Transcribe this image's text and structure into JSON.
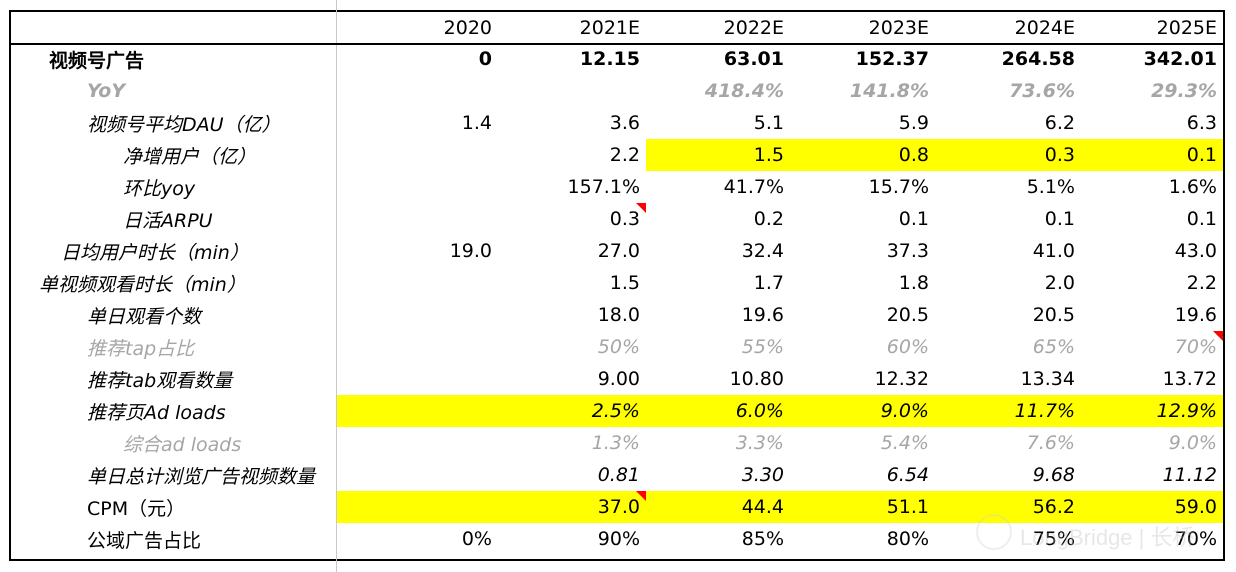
{
  "header": {
    "years": [
      "2020",
      "2021E",
      "2022E",
      "2023E",
      "2024E",
      "2025E"
    ]
  },
  "rows": [
    {
      "label": "视频号广告",
      "values": [
        "0",
        "12.15",
        "63.01",
        "152.37",
        "264.58",
        "342.01"
      ]
    },
    {
      "label": "YoY",
      "values": [
        "",
        "",
        "418.4%",
        "141.8%",
        "73.6%",
        "29.3%"
      ]
    },
    {
      "label": "视频号平均DAU（亿）",
      "values": [
        "1.4",
        "3.6",
        "5.1",
        "5.9",
        "6.2",
        "6.3"
      ]
    },
    {
      "label": "净增用户（亿）",
      "values": [
        "",
        "2.2",
        "1.5",
        "0.8",
        "0.3",
        "0.1"
      ]
    },
    {
      "label": "环比yoy",
      "values": [
        "",
        "157.1%",
        "41.7%",
        "15.7%",
        "5.1%",
        "1.6%"
      ]
    },
    {
      "label": "日活ARPU",
      "values": [
        "",
        "0.3",
        "0.2",
        "0.1",
        "0.1",
        "0.1"
      ]
    },
    {
      "label": "日均用户时长（min）",
      "values": [
        "19.0",
        "27.0",
        "32.4",
        "37.3",
        "41.0",
        "43.0"
      ]
    },
    {
      "label": "单视频观看时长（min）",
      "values": [
        "",
        "1.5",
        "1.7",
        "1.8",
        "2.0",
        "2.2"
      ]
    },
    {
      "label": "单日观看个数",
      "values": [
        "",
        "18.0",
        "19.6",
        "20.5",
        "20.5",
        "19.6"
      ]
    },
    {
      "label": "推荐tap占比",
      "values": [
        "",
        "50%",
        "55%",
        "60%",
        "65%",
        "70%"
      ]
    },
    {
      "label": "推荐tab观看数量",
      "values": [
        "",
        "9.00",
        "10.80",
        "12.32",
        "13.34",
        "13.72"
      ]
    },
    {
      "label": "推荐页Ad loads",
      "values": [
        "",
        "2.5%",
        "6.0%",
        "9.0%",
        "11.7%",
        "12.9%"
      ]
    },
    {
      "label": "综合ad loads",
      "values": [
        "",
        "1.3%",
        "3.3%",
        "5.4%",
        "7.6%",
        "9.0%"
      ]
    },
    {
      "label": "单日总计浏览广告视频数量",
      "values": [
        "",
        "0.81",
        "3.30",
        "6.54",
        "9.68",
        "11.12"
      ]
    },
    {
      "label": "CPM（元）",
      "values": [
        "",
        "37.0",
        "44.4",
        "51.1",
        "56.2",
        "59.0"
      ]
    },
    {
      "label": "公域广告占比",
      "values": [
        "0%",
        "90%",
        "85%",
        "80%",
        "75%",
        "70%"
      ]
    }
  ],
  "watermark": {
    "text": "LongBridge | 长桥"
  },
  "colors": {
    "highlight": "#ffff00",
    "grey_text": "#a6a6a6",
    "comment_flag": "#ff0000"
  }
}
